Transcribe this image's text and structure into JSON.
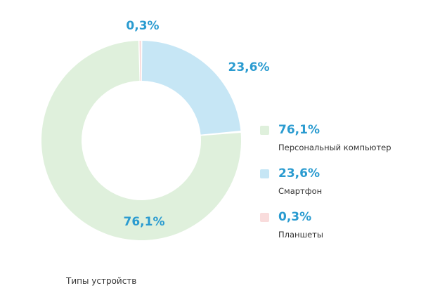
{
  "chart_data": {
    "type": "pie",
    "donut": true,
    "title": "",
    "caption": "Типы устройств",
    "slices": [
      {
        "label": "Персональный компьютер",
        "value": 76.1,
        "value_label": "76,1%",
        "color": "#dff0dc"
      },
      {
        "label": "Смартфон",
        "value": 23.6,
        "value_label": "23,6%",
        "color": "#c6e6f5"
      },
      {
        "label": "Планшеты",
        "value": 0.3,
        "value_label": "0,3%",
        "color": "#f9dcdc"
      }
    ],
    "legend": "right"
  },
  "colors": {
    "label_text": "#2a9bd0",
    "body_text": "#333333"
  }
}
